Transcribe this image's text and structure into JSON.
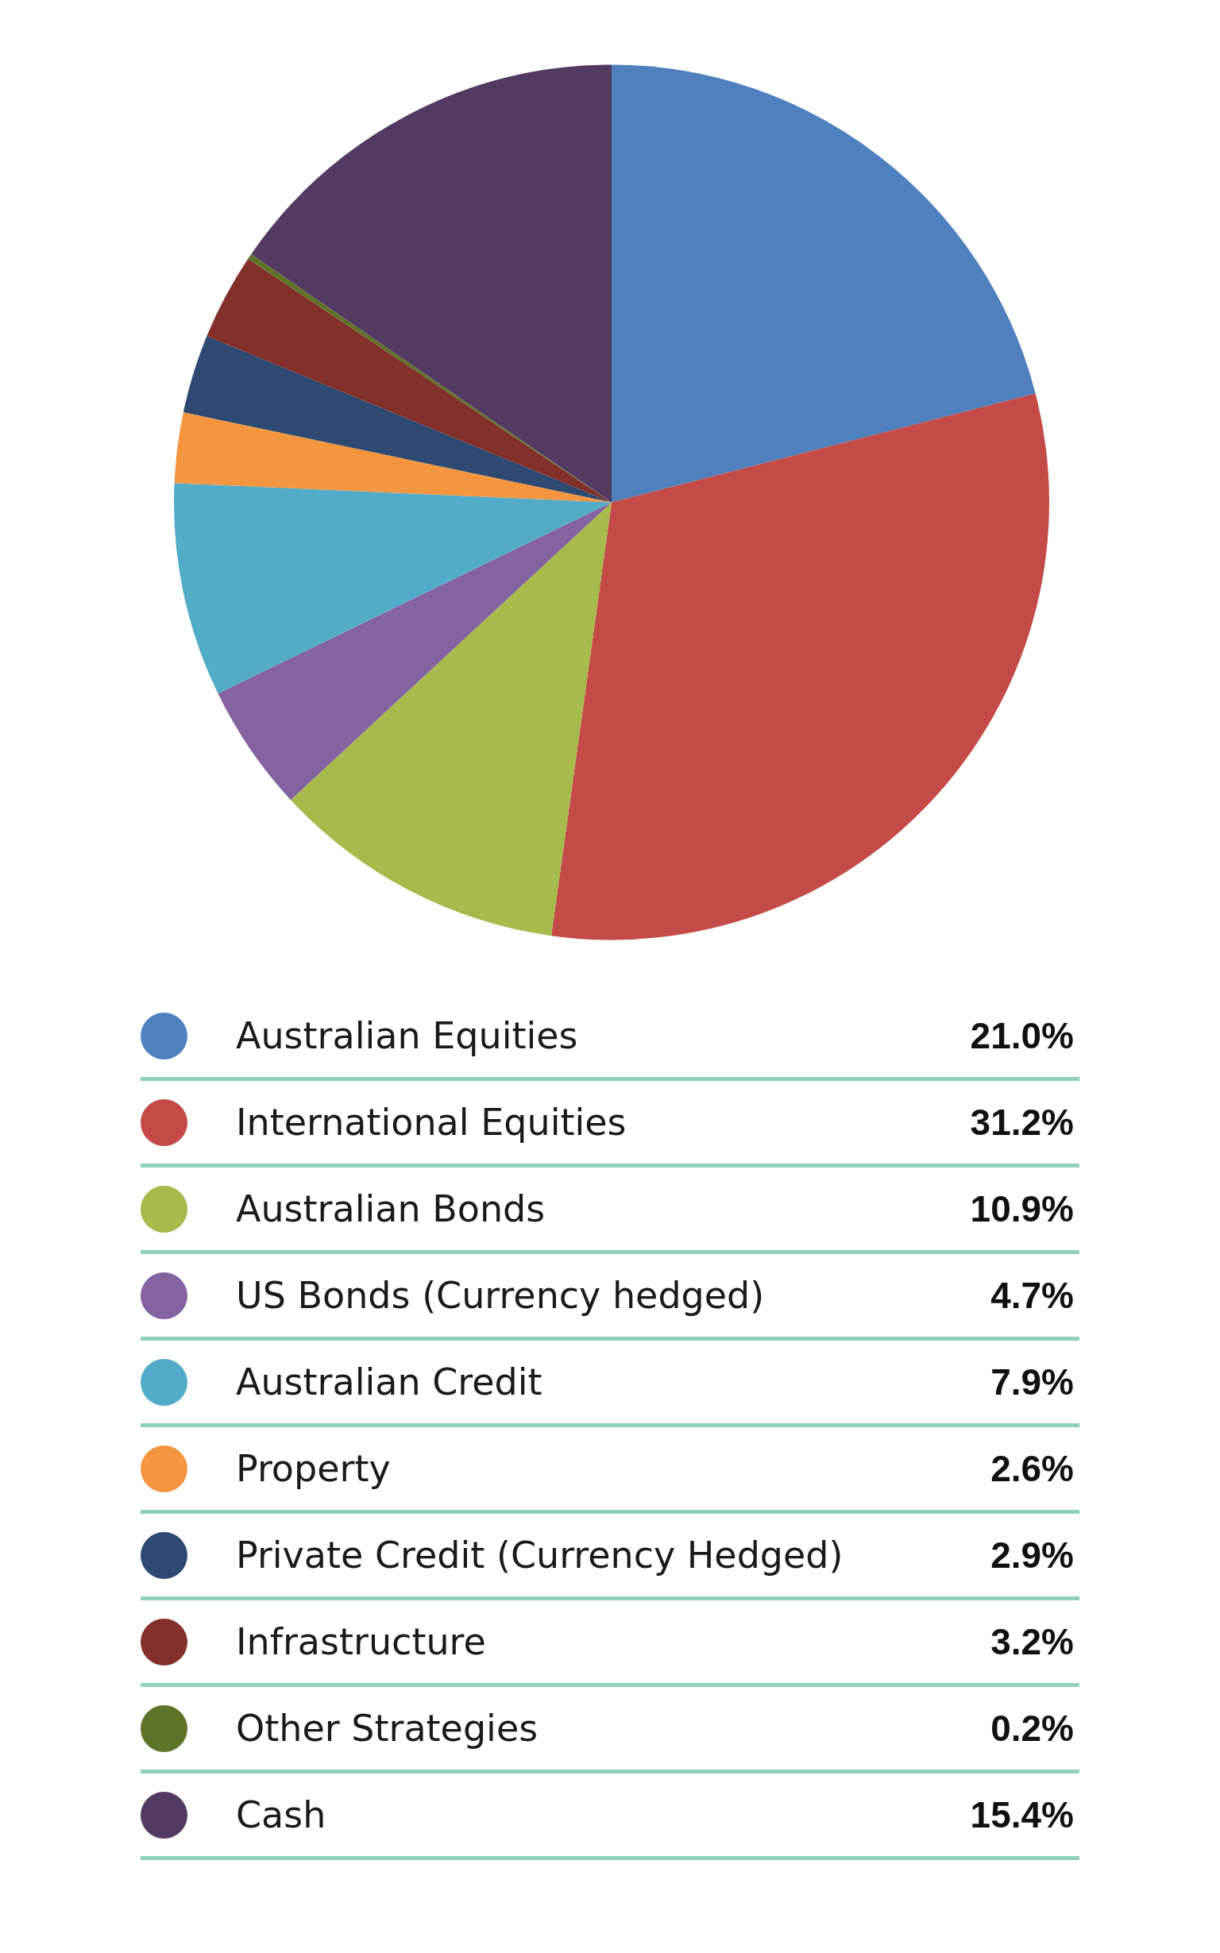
{
  "chart_data": {
    "type": "pie",
    "categories": [
      "Australian Equities",
      "International Equities",
      "Australian Bonds",
      "US Bonds (Currency hedged)",
      "Australian Credit",
      "Property",
      "Private Credit (Currency Hedged)",
      "Infrastructure",
      "Other Strategies",
      "Cash"
    ],
    "values": [
      21.0,
      31.2,
      10.9,
      4.7,
      7.9,
      2.6,
      2.9,
      3.2,
      0.2,
      15.4
    ],
    "value_labels": [
      "21.0%",
      "31.2%",
      "10.9%",
      "4.7%",
      "7.9%",
      "2.6%",
      "2.9%",
      "3.2%",
      "0.2%",
      "15.4%"
    ],
    "colors": [
      "#5081bf",
      "#c44b47",
      "#a5bb4b",
      "#8562a0",
      "#52abc8",
      "#f3963f",
      "#2f4a72",
      "#83302a",
      "#5e7428",
      "#523a62"
    ],
    "legend": "bottom"
  }
}
